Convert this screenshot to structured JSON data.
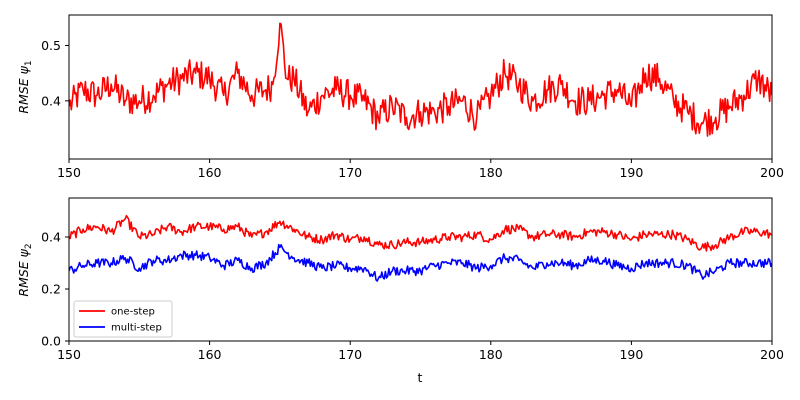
{
  "chart_data": [
    {
      "type": "line",
      "xlim": [
        150,
        200
      ],
      "ylim": [
        0.295,
        0.555
      ],
      "xticks": [
        150,
        160,
        170,
        180,
        190,
        200
      ],
      "yticks": [
        0.4,
        0.5
      ],
      "xlabel": "",
      "ylabel": "RMSE",
      "ylabel_symbol": "ψ",
      "ylabel_subscript": "1",
      "grid": false,
      "series": [
        {
          "name": "",
          "color": "#ff0000",
          "x": [
            150,
            151,
            152,
            153,
            154,
            155,
            156,
            157,
            158,
            159,
            160,
            161,
            162,
            163,
            164,
            164.5,
            165,
            165.5,
            166,
            167,
            168,
            169,
            170,
            171,
            172,
            173,
            174,
            175,
            176,
            177,
            178,
            179,
            180,
            181,
            182,
            183,
            184,
            185,
            186,
            187,
            188,
            189,
            190,
            191,
            192,
            193,
            194,
            195,
            196,
            197,
            198,
            199,
            200
          ],
          "y": [
            0.39,
            0.42,
            0.41,
            0.43,
            0.4,
            0.4,
            0.41,
            0.43,
            0.44,
            0.45,
            0.44,
            0.41,
            0.45,
            0.41,
            0.42,
            0.43,
            0.54,
            0.44,
            0.44,
            0.38,
            0.41,
            0.42,
            0.41,
            0.4,
            0.37,
            0.39,
            0.37,
            0.38,
            0.38,
            0.39,
            0.4,
            0.37,
            0.41,
            0.45,
            0.43,
            0.4,
            0.42,
            0.43,
            0.4,
            0.4,
            0.41,
            0.42,
            0.39,
            0.45,
            0.44,
            0.4,
            0.38,
            0.36,
            0.37,
            0.39,
            0.41,
            0.44,
            0.41
          ]
        }
      ]
    },
    {
      "type": "line",
      "xlim": [
        150,
        200
      ],
      "ylim": [
        0,
        0.55
      ],
      "xticks": [
        150,
        160,
        170,
        180,
        190,
        200
      ],
      "yticks": [
        0.0,
        0.2,
        0.4
      ],
      "xlabel": "t",
      "ylabel": "RMSE",
      "ylabel_symbol": "ψ",
      "ylabel_subscript": "2",
      "grid": false,
      "legend_position": "lower-left",
      "x": [
        150,
        151,
        152,
        153,
        154,
        155,
        156,
        157,
        158,
        159,
        160,
        161,
        162,
        163,
        164,
        165,
        166,
        167,
        168,
        169,
        170,
        171,
        172,
        173,
        174,
        175,
        176,
        177,
        178,
        179,
        180,
        181,
        182,
        183,
        184,
        185,
        186,
        187,
        188,
        189,
        190,
        191,
        192,
        193,
        194,
        195,
        196,
        197,
        198,
        199,
        200
      ],
      "series": [
        {
          "name": "one-step",
          "color": "#ff0000",
          "values": [
            0.4,
            0.43,
            0.44,
            0.42,
            0.47,
            0.4,
            0.41,
            0.44,
            0.42,
            0.44,
            0.44,
            0.43,
            0.44,
            0.4,
            0.42,
            0.46,
            0.43,
            0.4,
            0.39,
            0.41,
            0.39,
            0.4,
            0.37,
            0.37,
            0.38,
            0.38,
            0.39,
            0.4,
            0.4,
            0.41,
            0.39,
            0.43,
            0.43,
            0.4,
            0.41,
            0.41,
            0.4,
            0.42,
            0.42,
            0.41,
            0.39,
            0.41,
            0.41,
            0.41,
            0.39,
            0.36,
            0.37,
            0.4,
            0.42,
            0.42,
            0.41
          ]
        },
        {
          "name": "multi-step",
          "color": "#0000ff",
          "values": [
            0.27,
            0.29,
            0.3,
            0.3,
            0.32,
            0.28,
            0.31,
            0.31,
            0.33,
            0.33,
            0.32,
            0.29,
            0.31,
            0.28,
            0.3,
            0.36,
            0.32,
            0.3,
            0.28,
            0.29,
            0.28,
            0.28,
            0.24,
            0.27,
            0.27,
            0.27,
            0.29,
            0.3,
            0.3,
            0.28,
            0.29,
            0.32,
            0.31,
            0.28,
            0.3,
            0.3,
            0.29,
            0.31,
            0.31,
            0.29,
            0.28,
            0.3,
            0.3,
            0.3,
            0.29,
            0.25,
            0.27,
            0.3,
            0.3,
            0.3,
            0.3
          ]
        }
      ]
    }
  ]
}
